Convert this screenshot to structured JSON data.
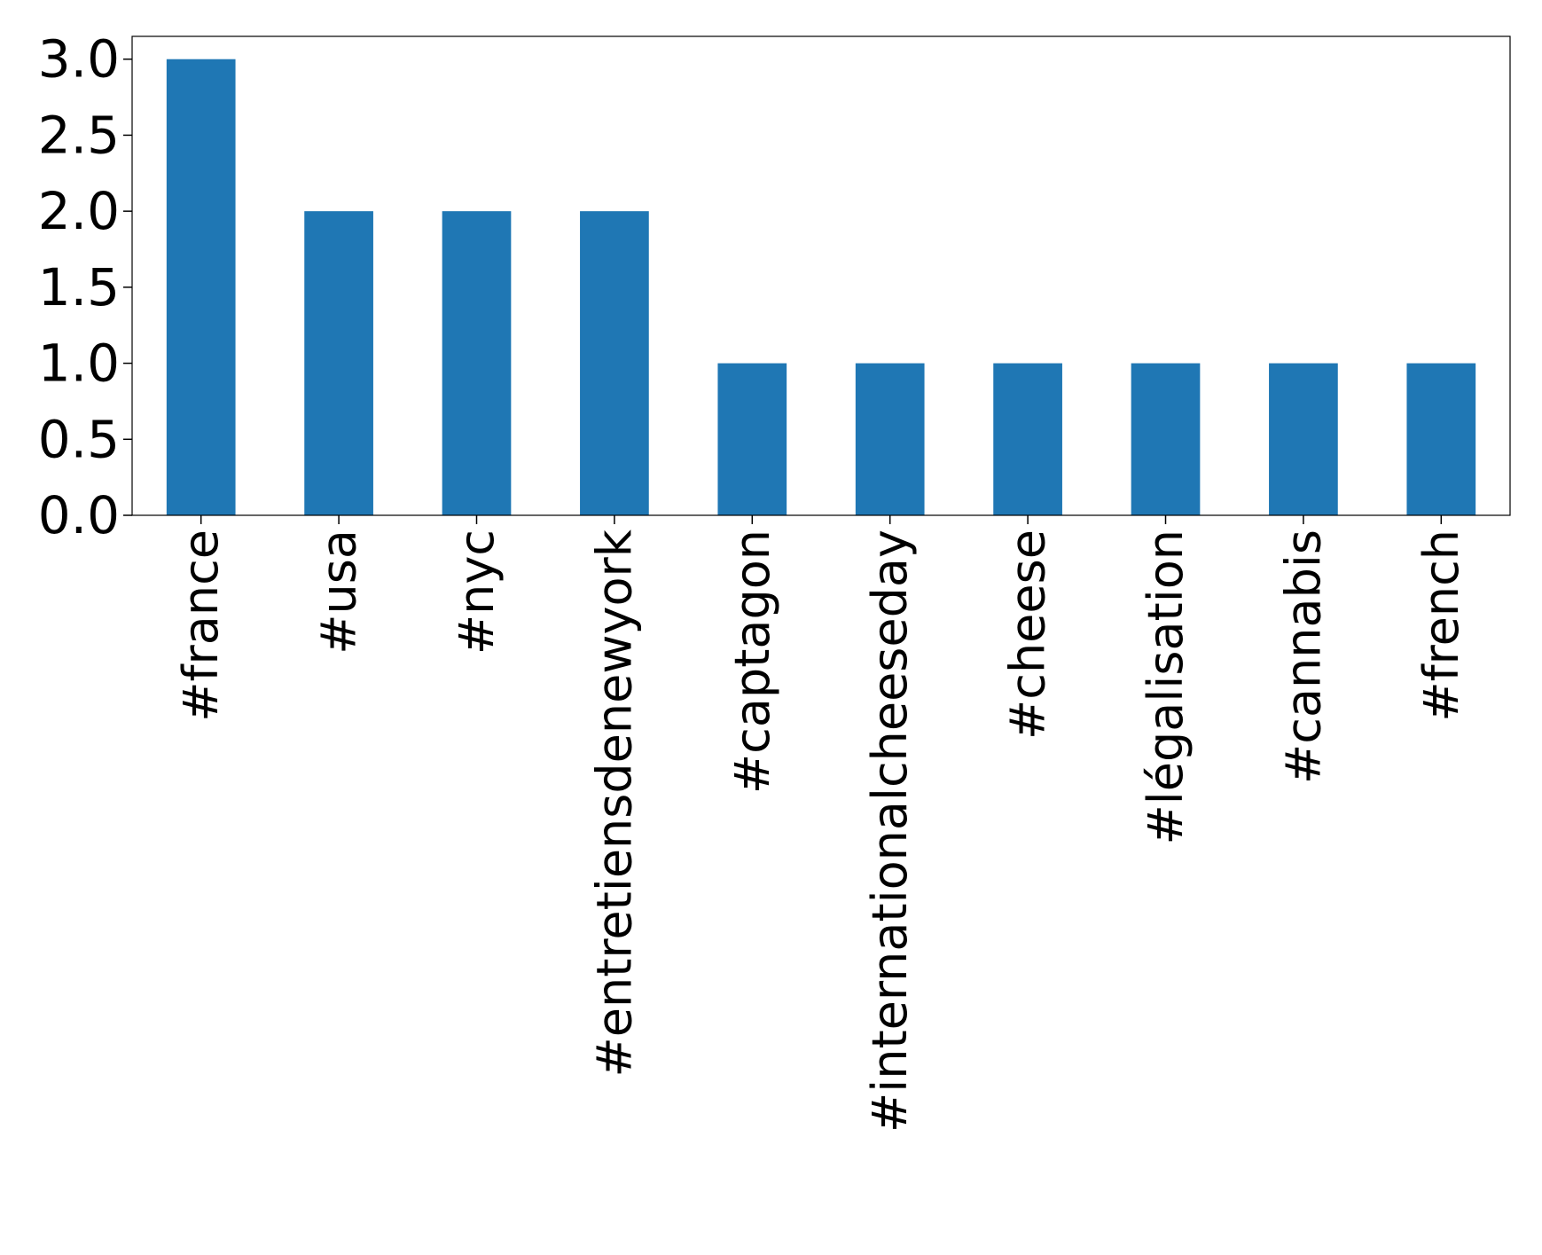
{
  "chart_data": {
    "type": "bar",
    "categories": [
      "#france",
      "#usa",
      "#nyc",
      "#entretiensdenewyork",
      "#captagon",
      "#internationalcheeseday",
      "#cheese",
      "#légalisation",
      "#cannabis",
      "#french"
    ],
    "values": [
      3,
      2,
      2,
      2,
      1,
      1,
      1,
      1,
      1,
      1
    ],
    "title": "",
    "xlabel": "",
    "ylabel": "",
    "ylim": [
      0,
      3.15
    ],
    "yticks": [
      "0.0",
      "0.5",
      "1.0",
      "1.5",
      "2.0",
      "2.5",
      "3.0"
    ],
    "grid": false,
    "bar_color": "#1f77b4"
  }
}
